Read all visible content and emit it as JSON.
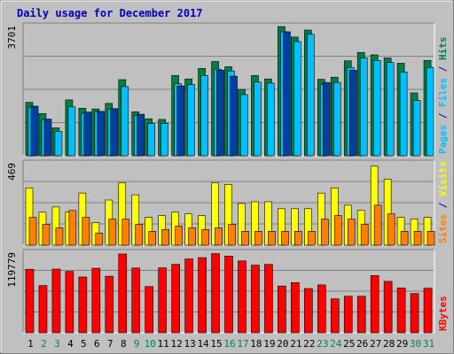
{
  "chart_data": {
    "type": "bar",
    "title": "Daily usage for December 2017",
    "days": [
      "1",
      "2",
      "3",
      "4",
      "5",
      "6",
      "7",
      "8",
      "9",
      "10",
      "11",
      "12",
      "13",
      "14",
      "15",
      "16",
      "17",
      "18",
      "19",
      "20",
      "21",
      "22",
      "23",
      "24",
      "25",
      "26",
      "27",
      "28",
      "29",
      "30",
      "31"
    ],
    "weekend_days": [
      "2",
      "3",
      "9",
      "10",
      "16",
      "17",
      "23",
      "24",
      "30",
      "31"
    ],
    "panels": [
      {
        "id": "pfh",
        "ymax": 3701,
        "ymax_label": "3701",
        "series": [
          {
            "name": "Hits",
            "color": "#008040",
            "values": [
              1530,
              1210,
              800,
              1600,
              1360,
              1340,
              1500,
              2180,
              1260,
              1060,
              1040,
              2300,
              2200,
              2500,
              2700,
              2550,
              1900,
              2300,
              2200,
              3700,
              3400,
              3600,
              2190,
              2250,
              2720,
              2960,
              2890,
              2800,
              2650,
              1800,
              2730
            ]
          },
          {
            "name": "Files",
            "color": "#00c0ff",
            "values": [
              1390,
              1030,
              700,
              1400,
              1220,
              1250,
              1330,
              1980,
              1160,
              920,
              930,
              2060,
              2040,
              2300,
              2480,
              2430,
              1750,
              2110,
              2080,
              3550,
              3270,
              3480,
              2040,
              2100,
              2530,
              2800,
              2730,
              2670,
              2400,
              1580,
              2530
            ]
          },
          {
            "name": "Pages",
            "color": "#0040a0",
            "values": [
              1420,
              1050,
              0,
              0,
              1250,
              1270,
              1350,
              0,
              1190,
              0,
              0,
              2000,
              0,
              0,
              2450,
              2280,
              0,
              0,
              0,
              3550,
              0,
              0,
              2100,
              0,
              2450,
              0,
              0,
              0,
              0,
              0,
              0
            ]
          }
        ],
        "side_label": [
          "Pages",
          "Files",
          "Hits"
        ],
        "side_colors": [
          "#00c0ff",
          "#0000c0",
          "#00c0ff",
          "#0000c0",
          "#008040"
        ]
      },
      {
        "id": "sv",
        "ymax": 469,
        "ymax_label": "469",
        "series": [
          {
            "name": "Visits",
            "color": "#ffff00",
            "values": [
              330,
              190,
              220,
              190,
              300,
              130,
              260,
              360,
              290,
              160,
              170,
              190,
              180,
              170,
              360,
              350,
              240,
              250,
              250,
              210,
              210,
              210,
              300,
              330,
              230,
              200,
              455,
              380,
              160,
              150,
              160
            ]
          },
          {
            "name": "Sites",
            "color": "#ff8000",
            "values": [
              160,
              120,
              100,
              200,
              160,
              70,
              150,
              150,
              120,
              80,
              90,
              110,
              100,
              90,
              100,
              120,
              80,
              80,
              80,
              80,
              80,
              80,
              150,
              170,
              150,
              120,
              230,
              180,
              80,
              80,
              80
            ]
          }
        ],
        "side_label": [
          "Sites",
          "Visits"
        ],
        "side_colors": [
          "#ff8000",
          "#0000c0",
          "#ffff00"
        ]
      },
      {
        "id": "kb",
        "ymax": 119779,
        "ymax_label": "119779",
        "series": [
          {
            "name": "KBytes",
            "color": "#ff0000",
            "values": [
              95500,
              71000,
              95800,
              92300,
              83900,
              97000,
              85000,
              118500,
              97400,
              69500,
              97600,
              102900,
              111000,
              113000,
              119000,
              115300,
              108000,
              101700,
              102800,
              70300,
              75400,
              66500,
              72000,
              51000,
              55000,
              55000,
              86000,
              77300,
              67400,
              59000,
              67000
            ]
          }
        ],
        "side_label": [
          "KBytes"
        ],
        "side_colors": [
          "#ff0000"
        ]
      }
    ],
    "colors": {
      "title": "#0000c0",
      "weekday_label": "#000000",
      "weekend_label": "#00805c",
      "panel_bg": "#c0c0c0",
      "grid": "#808080"
    }
  }
}
